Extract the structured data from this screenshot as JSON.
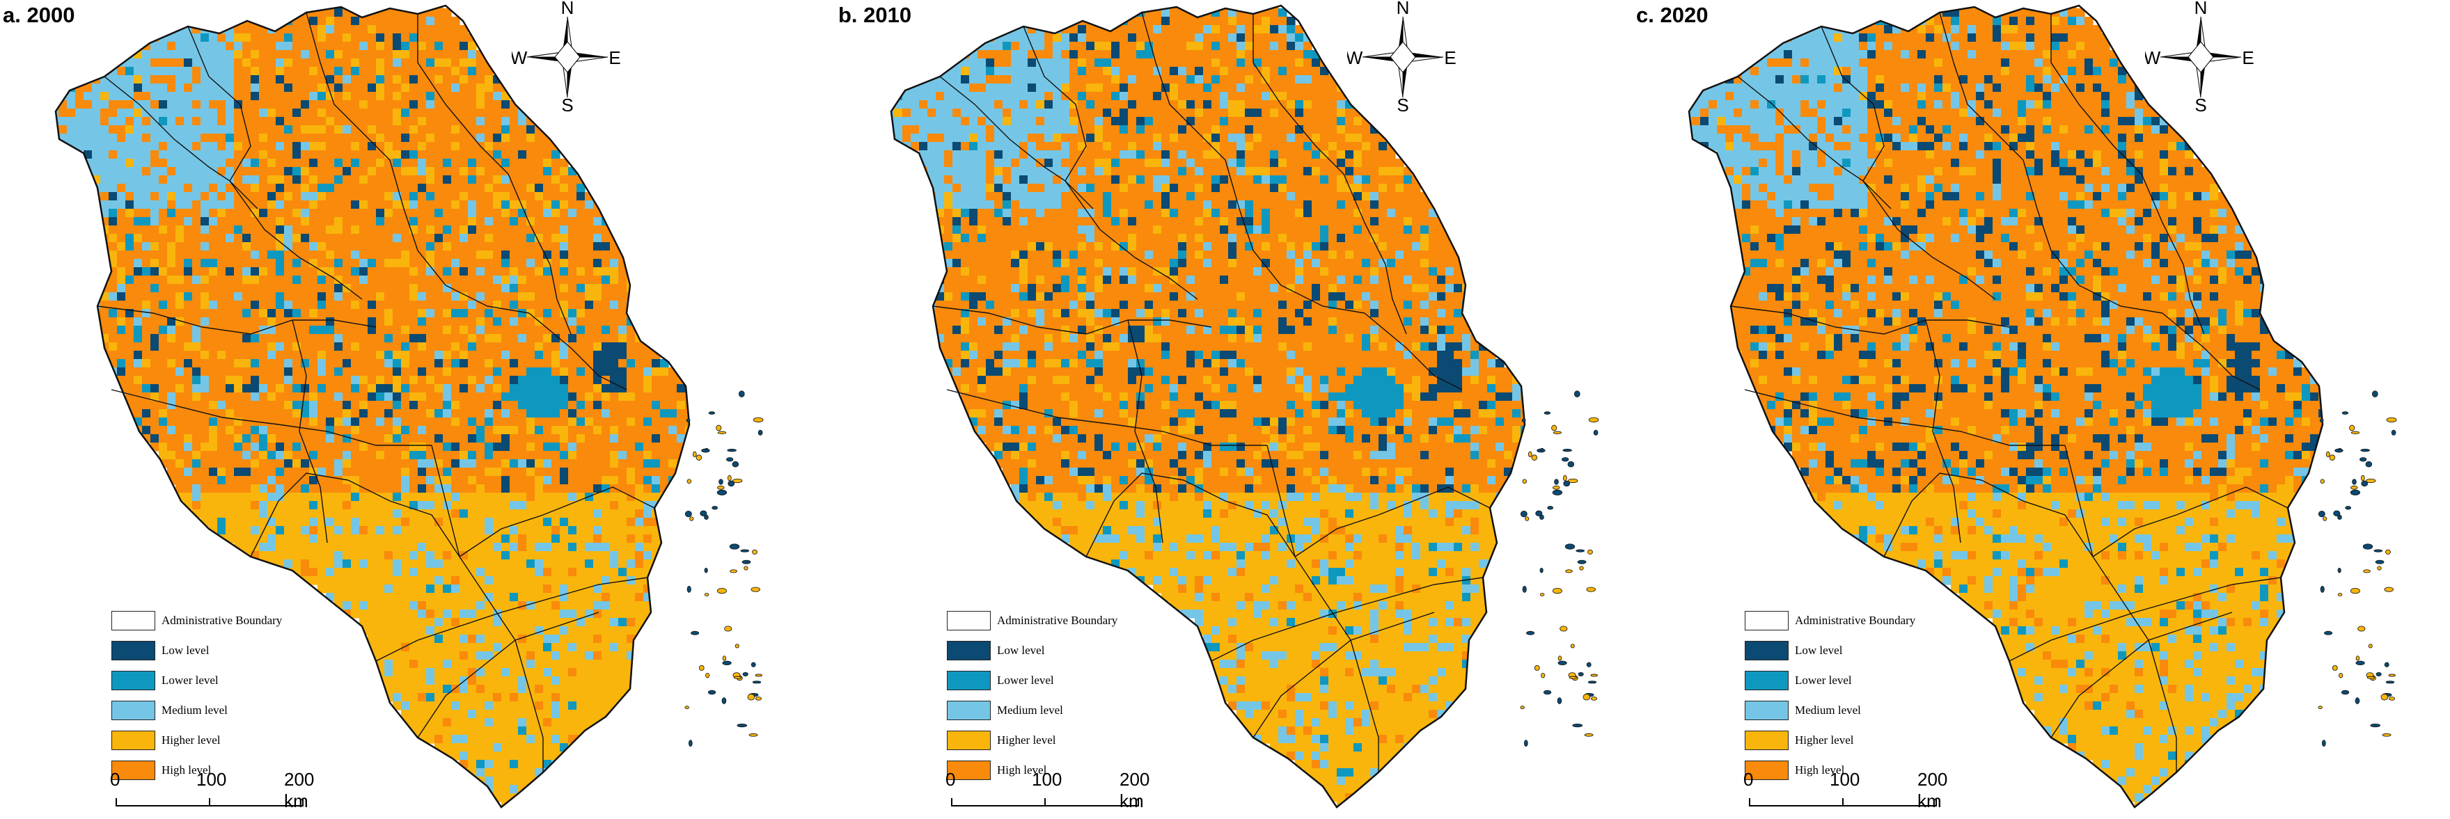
{
  "colors": {
    "low": "#0b4a73",
    "lower": "#0f98bf",
    "medium": "#75c6e6",
    "higher": "#f9b50b",
    "high": "#f98a0b",
    "boundary": "#111111"
  },
  "panels": [
    {
      "title": "a. 2000"
    },
    {
      "title": "b. 2010"
    },
    {
      "title": "c. 2020"
    }
  ],
  "compass": {
    "n": "N",
    "s": "S",
    "e": "E",
    "w": "W"
  },
  "legend": {
    "items": [
      {
        "label": "Administrative Boundary",
        "color": "#ffffff"
      },
      {
        "label": "Low level",
        "color": "#0b4a73"
      },
      {
        "label": "Lower level",
        "color": "#0f98bf"
      },
      {
        "label": "Medium level",
        "color": "#75c6e6"
      },
      {
        "label": "Higher level",
        "color": "#f9b50b"
      },
      {
        "label": "High level",
        "color": "#f98a0b"
      }
    ]
  },
  "scale": {
    "t0": "0",
    "t1": "100",
    "t2": "200 km"
  }
}
